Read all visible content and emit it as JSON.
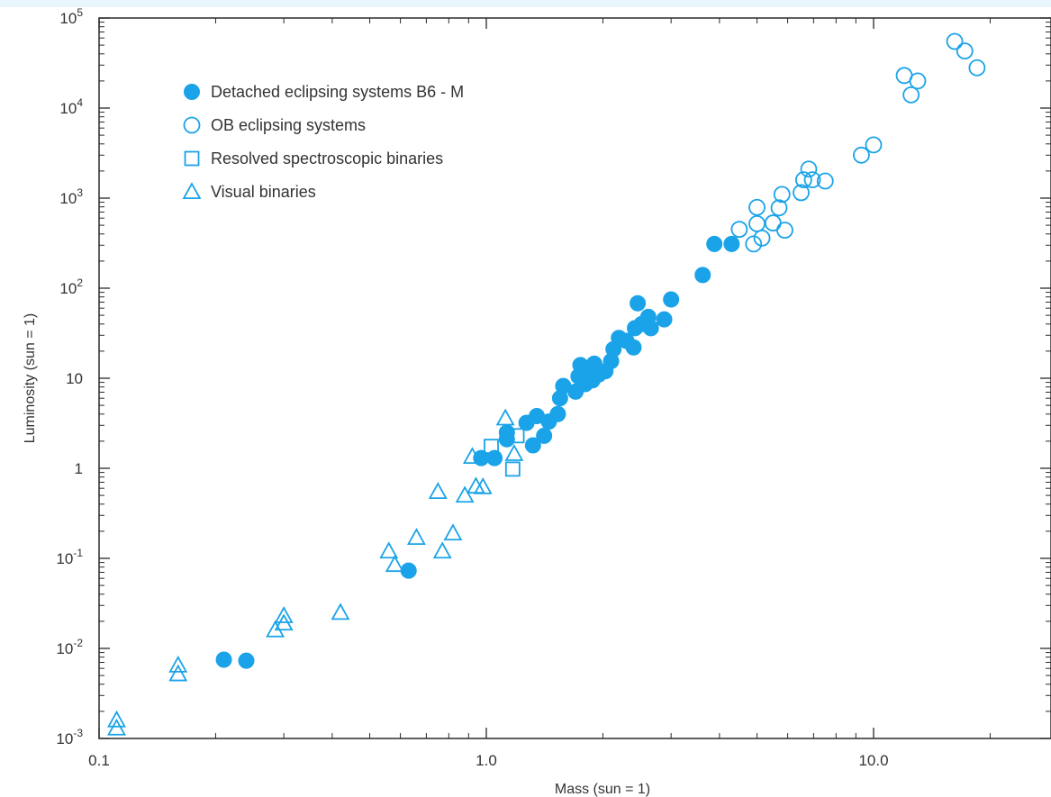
{
  "chart_data": {
    "type": "scatter",
    "title": "",
    "xlabel": "Mass (sun = 1)",
    "ylabel": "Luminosity (sun = 1)",
    "x_scale": "log",
    "y_scale": "log",
    "xlim": [
      0.1,
      30
    ],
    "ylim": [
      0.001,
      100000
    ],
    "grid": false,
    "legend_position": "top-left",
    "x_ticks": [
      {
        "value": 0.1,
        "label": "0.1"
      },
      {
        "value": 1,
        "label": "1.0"
      },
      {
        "value": 10,
        "label": "10.0"
      }
    ],
    "y_ticks": [
      {
        "value": 0.001,
        "base": "10",
        "exp": "-3"
      },
      {
        "value": 0.01,
        "base": "10",
        "exp": "-2"
      },
      {
        "value": 0.1,
        "base": "10",
        "exp": "-1"
      },
      {
        "value": 1,
        "base": "1",
        "exp": ""
      },
      {
        "value": 10,
        "base": "10",
        "exp": ""
      },
      {
        "value": 100,
        "base": "10",
        "exp": "2"
      },
      {
        "value": 1000,
        "base": "10",
        "exp": "3"
      },
      {
        "value": 10000,
        "base": "10",
        "exp": "4"
      },
      {
        "value": 100000,
        "base": "10",
        "exp": "5"
      }
    ],
    "series": [
      {
        "name": "Detached eclipsing systems B6 - M",
        "marker": "filled-circle",
        "color": "#1aa3e8",
        "points": [
          [
            0.21,
            0.0075
          ],
          [
            0.24,
            0.0073
          ],
          [
            0.63,
            0.073
          ],
          [
            0.97,
            1.3
          ],
          [
            1.05,
            1.3
          ],
          [
            1.13,
            2.1
          ],
          [
            1.13,
            2.5
          ],
          [
            1.27,
            3.2
          ],
          [
            1.32,
            1.8
          ],
          [
            1.35,
            3.8
          ],
          [
            1.41,
            2.3
          ],
          [
            1.45,
            3.3
          ],
          [
            1.53,
            4.0
          ],
          [
            1.55,
            6.0
          ],
          [
            1.58,
            8.2
          ],
          [
            1.7,
            7.1
          ],
          [
            1.73,
            10.5
          ],
          [
            1.75,
            14.0
          ],
          [
            1.8,
            8.6
          ],
          [
            1.85,
            12.0
          ],
          [
            1.88,
            9.5
          ],
          [
            1.9,
            14.5
          ],
          [
            1.95,
            11.0
          ],
          [
            2.03,
            12.0
          ],
          [
            2.1,
            15.5
          ],
          [
            2.13,
            21.0
          ],
          [
            2.2,
            28.0
          ],
          [
            2.3,
            26.0
          ],
          [
            2.4,
            22.0
          ],
          [
            2.42,
            36.0
          ],
          [
            2.46,
            68.0
          ],
          [
            2.52,
            40.0
          ],
          [
            2.62,
            48.0
          ],
          [
            2.66,
            36.0
          ],
          [
            2.88,
            45.0
          ],
          [
            3.0,
            75.0
          ],
          [
            3.62,
            140.0
          ],
          [
            3.88,
            310.0
          ],
          [
            4.3,
            310.0
          ]
        ]
      },
      {
        "name": "OB eclipsing systems",
        "marker": "open-circle",
        "color": "#1aa3e8",
        "points": [
          [
            4.5,
            450
          ],
          [
            4.9,
            310
          ],
          [
            5.0,
            790
          ],
          [
            5.0,
            520
          ],
          [
            5.15,
            360
          ],
          [
            5.5,
            530
          ],
          [
            5.7,
            780
          ],
          [
            5.8,
            1100
          ],
          [
            5.9,
            440
          ],
          [
            6.5,
            1150
          ],
          [
            6.6,
            1600
          ],
          [
            6.8,
            2100
          ],
          [
            6.95,
            1600
          ],
          [
            7.5,
            1550
          ],
          [
            9.3,
            3000
          ],
          [
            10.0,
            3900
          ],
          [
            12.0,
            23000
          ],
          [
            12.5,
            14000
          ],
          [
            13.0,
            20000
          ],
          [
            16.2,
            55000
          ],
          [
            17.2,
            43000
          ],
          [
            18.5,
            28000
          ]
        ]
      },
      {
        "name": "Resolved spectroscopic binaries",
        "marker": "open-square",
        "color": "#1aa3e8",
        "points": [
          [
            1.03,
            1.75
          ],
          [
            1.17,
            0.98
          ],
          [
            1.2,
            2.3
          ]
        ]
      },
      {
        "name": "Visual binaries",
        "marker": "open-triangle",
        "color": "#1aa3e8",
        "points": [
          [
            0.111,
            0.0016
          ],
          [
            0.111,
            0.0013
          ],
          [
            0.16,
            0.0065
          ],
          [
            0.16,
            0.0052
          ],
          [
            0.285,
            0.016
          ],
          [
            0.3,
            0.023
          ],
          [
            0.3,
            0.019
          ],
          [
            0.42,
            0.025
          ],
          [
            0.56,
            0.12
          ],
          [
            0.58,
            0.085
          ],
          [
            0.66,
            0.17
          ],
          [
            0.75,
            0.55
          ],
          [
            0.77,
            0.12
          ],
          [
            0.82,
            0.19
          ],
          [
            0.88,
            0.5
          ],
          [
            0.92,
            1.35
          ],
          [
            0.94,
            0.63
          ],
          [
            0.98,
            0.62
          ],
          [
            1.12,
            3.6
          ],
          [
            1.18,
            1.45
          ]
        ]
      }
    ]
  }
}
